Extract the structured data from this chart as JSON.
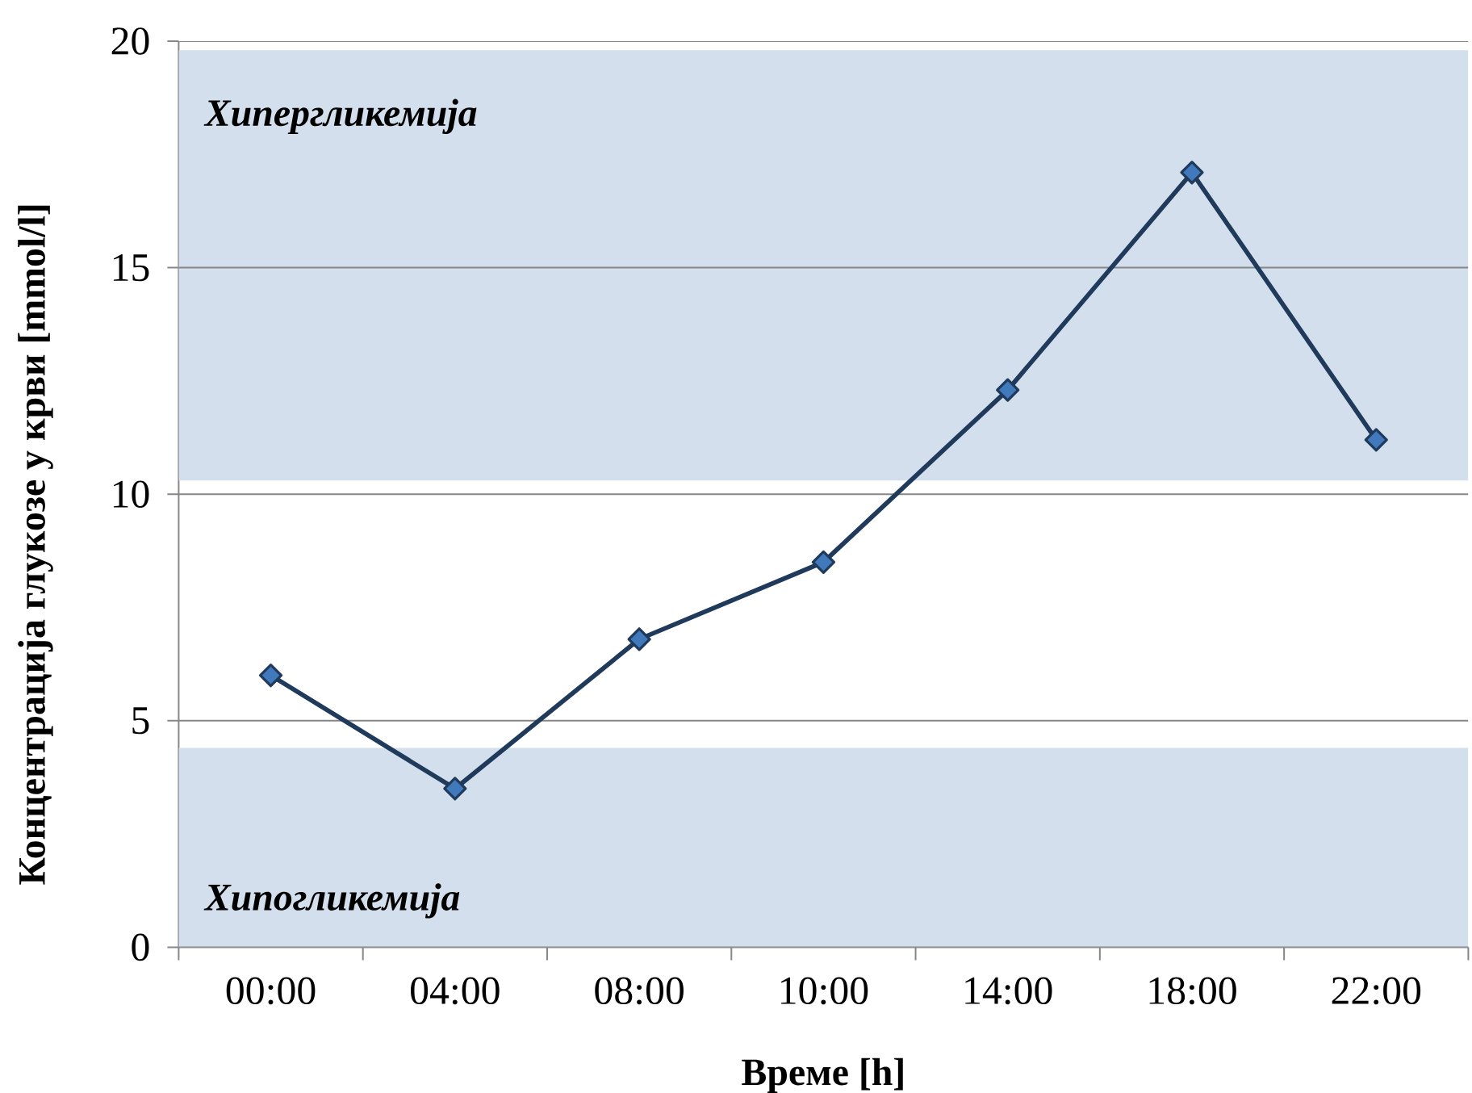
{
  "chart_data": {
    "type": "line",
    "xlabel": "Време [h]",
    "ylabel": "Концентрација глукозе у крви [mmol/l]",
    "categories": [
      "00:00",
      "04:00",
      "08:00",
      "10:00",
      "14:00",
      "18:00",
      "22:00"
    ],
    "series": [
      {
        "color": "#1f3a5a",
        "values": [
          6.0,
          3.5,
          6.8,
          8.5,
          12.3,
          17.1,
          11.2
        ]
      }
    ],
    "ylim": [
      0,
      20
    ],
    "yticks": [
      0,
      5,
      10,
      15,
      20
    ],
    "grid": "y",
    "marker": "diamond",
    "line_style": "solid",
    "bands": [
      {
        "axis": "y",
        "from": 10.3,
        "to": 19.8,
        "label": "Хипергликемија",
        "color": "#d3dfed"
      },
      {
        "axis": "y",
        "from": 0,
        "to": 4.4,
        "label": "Хипогликемија",
        "color": "#d3dfed"
      }
    ]
  }
}
